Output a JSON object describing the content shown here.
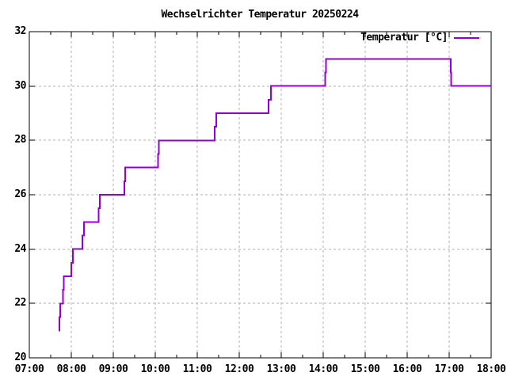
{
  "title": "Wechselrichter Temperatur 20250224",
  "legend": {
    "label": "Temperatur [°C]"
  },
  "colors": {
    "line": "#9400d3",
    "grid": "#b0b0b0",
    "axis": "#000000",
    "text": "#000000",
    "background": "#ffffff"
  },
  "chart_data": {
    "type": "line",
    "style": "steps-post",
    "title": "Wechselrichter Temperatur 20250224",
    "xlabel": "",
    "ylabel": "",
    "grid": true,
    "legend_position": "top-right",
    "x_axis": {
      "ticks": [
        "07:00",
        "08:00",
        "09:00",
        "10:00",
        "11:00",
        "12:00",
        "13:00",
        "14:00",
        "15:00",
        "16:00",
        "17:00",
        "18:00"
      ],
      "minor_interval_minutes": 30,
      "range": [
        "07:00",
        "18:00"
      ]
    },
    "y_axis": {
      "ticks": [
        20,
        22,
        24,
        26,
        28,
        30,
        32
      ],
      "range": [
        20,
        32
      ]
    },
    "series": [
      {
        "name": "Temperatur [°C]",
        "color": "#9400d3",
        "points": [
          [
            "07:42",
            21
          ],
          [
            "07:43",
            21.5
          ],
          [
            "07:44",
            22
          ],
          [
            "07:48",
            22.5
          ],
          [
            "07:49",
            23
          ],
          [
            "08:00",
            23.5
          ],
          [
            "08:02",
            24
          ],
          [
            "08:16",
            24.5
          ],
          [
            "08:18",
            25
          ],
          [
            "08:39",
            25.5
          ],
          [
            "08:41",
            26
          ],
          [
            "09:16",
            26.5
          ],
          [
            "09:17",
            27
          ],
          [
            "10:04",
            27.5
          ],
          [
            "10:05",
            28
          ],
          [
            "11:25",
            28.5
          ],
          [
            "11:27",
            29
          ],
          [
            "12:42",
            29.5
          ],
          [
            "12:45",
            30
          ],
          [
            "14:03",
            30.5
          ],
          [
            "14:04",
            31
          ],
          [
            "17:02",
            30.5
          ],
          [
            "17:03",
            30
          ],
          [
            "18:00",
            30
          ]
        ]
      }
    ]
  }
}
